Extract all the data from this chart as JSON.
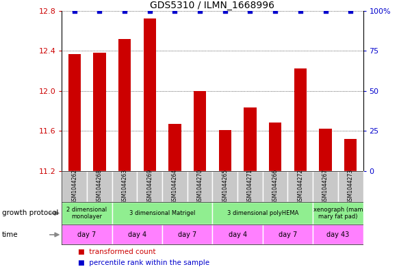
{
  "title": "GDS5310 / ILMN_1668996",
  "samples": [
    "GSM1044262",
    "GSM1044268",
    "GSM1044263",
    "GSM1044269",
    "GSM1044264",
    "GSM1044270",
    "GSM1044265",
    "GSM1044271",
    "GSM1044266",
    "GSM1044272",
    "GSM1044267",
    "GSM1044273"
  ],
  "bar_values": [
    12.37,
    12.38,
    12.52,
    12.72,
    11.67,
    12.0,
    11.61,
    11.83,
    11.68,
    12.22,
    11.62,
    11.52
  ],
  "percentile_values": [
    100,
    100,
    100,
    100,
    100,
    100,
    100,
    100,
    100,
    100,
    100,
    100
  ],
  "bar_color": "#cc0000",
  "percentile_color": "#0000cc",
  "ylim_left": [
    11.2,
    12.8
  ],
  "ylim_right": [
    0,
    100
  ],
  "yticks_left": [
    11.2,
    11.6,
    12.0,
    12.4,
    12.8
  ],
  "yticks_right": [
    0,
    25,
    50,
    75,
    100
  ],
  "growth_protocol_groups": [
    {
      "label": "2 dimensional\nmonolayer",
      "start": 0,
      "end": 2,
      "color": "#90ee90"
    },
    {
      "label": "3 dimensional Matrigel",
      "start": 2,
      "end": 6,
      "color": "#90ee90"
    },
    {
      "label": "3 dimensional polyHEMA",
      "start": 6,
      "end": 10,
      "color": "#90ee90"
    },
    {
      "label": "xenograph (mam\nmary fat pad)",
      "start": 10,
      "end": 12,
      "color": "#90ee90"
    }
  ],
  "time_groups": [
    {
      "label": "day 7",
      "start": 0,
      "end": 2,
      "color": "#ff80ff"
    },
    {
      "label": "day 4",
      "start": 2,
      "end": 4,
      "color": "#ff80ff"
    },
    {
      "label": "day 7",
      "start": 4,
      "end": 6,
      "color": "#ff80ff"
    },
    {
      "label": "day 4",
      "start": 6,
      "end": 8,
      "color": "#ff80ff"
    },
    {
      "label": "day 7",
      "start": 8,
      "end": 10,
      "color": "#ff80ff"
    },
    {
      "label": "day 43",
      "start": 10,
      "end": 12,
      "color": "#ff80ff"
    }
  ],
  "growth_protocol_label": "growth protocol",
  "time_label": "time",
  "legend_items": [
    {
      "label": "transformed count",
      "color": "#cc0000"
    },
    {
      "label": "percentile rank within the sample",
      "color": "#0000cc"
    }
  ],
  "left_axis_color": "#cc0000",
  "right_axis_color": "#0000cc",
  "sample_bg_color": "#c8c8c8",
  "bar_width": 0.5
}
